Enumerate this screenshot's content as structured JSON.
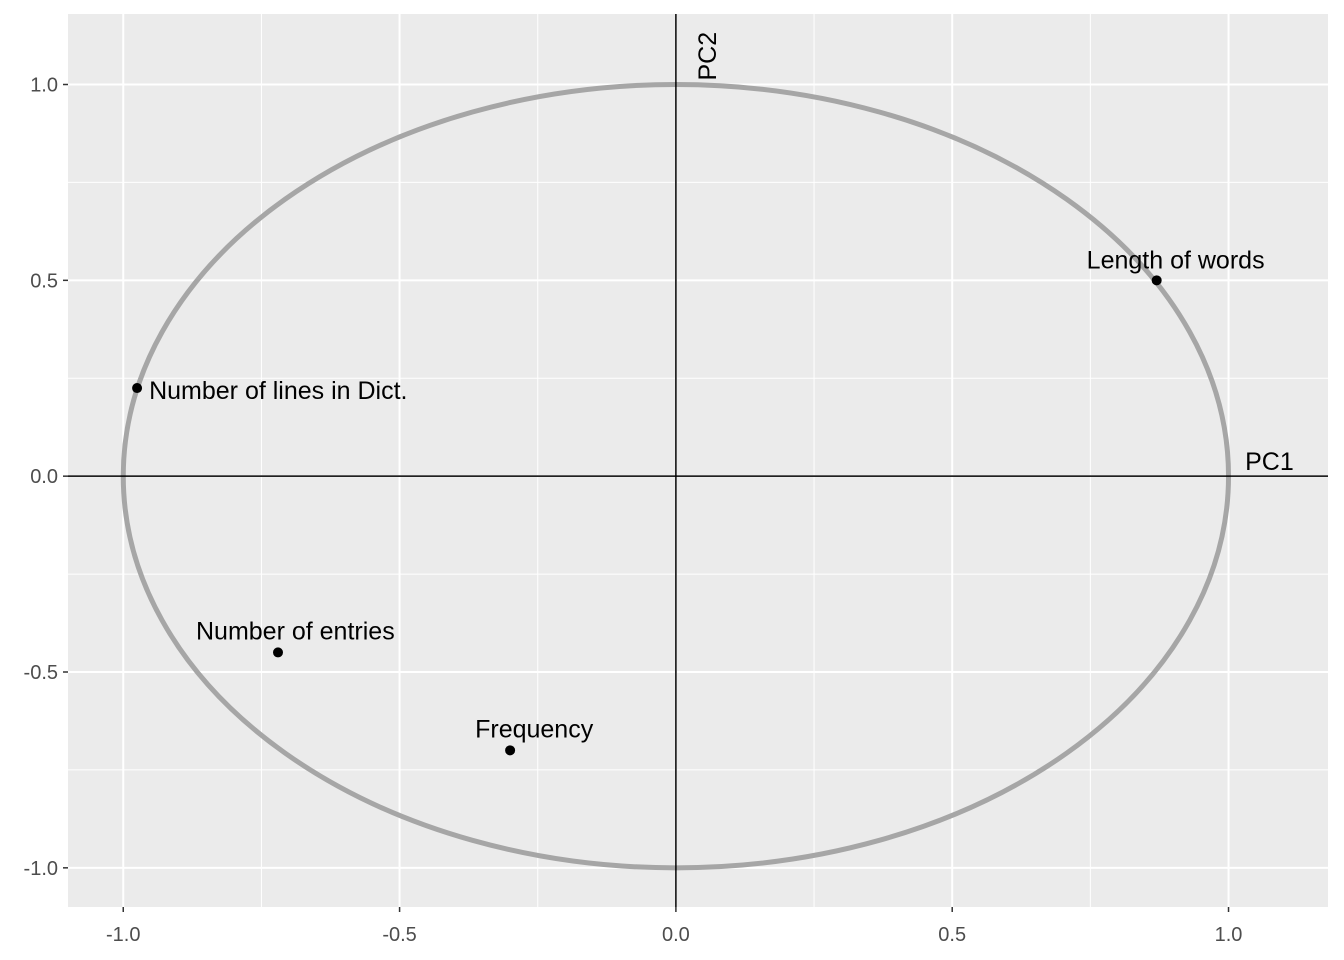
{
  "chart_data": {
    "type": "scatter",
    "title": "",
    "xlabel": "",
    "ylabel": "",
    "xlim": [
      -1.1,
      1.18
    ],
    "ylim": [
      -1.1,
      1.18
    ],
    "x_ticks": [
      -1.0,
      -0.5,
      0.0,
      0.5,
      1.0
    ],
    "y_ticks": [
      -1.0,
      -0.5,
      0.0,
      0.5,
      1.0
    ],
    "x_tick_labels": [
      "-1.0",
      "-0.5",
      "0.0",
      "0.5",
      "1.0"
    ],
    "y_tick_labels": [
      "-1.0",
      "-0.5",
      "0.0",
      "0.5",
      "1.0"
    ],
    "grid": true,
    "unit_circle": {
      "radius": 1.0,
      "color": "#a6a6a6"
    },
    "reference_axes": [
      {
        "label": "PC1",
        "orientation": "horizontal",
        "value": 0.0
      },
      {
        "label": "PC2",
        "orientation": "vertical",
        "value": 0.0
      }
    ],
    "points": [
      {
        "label": "Length of words",
        "x": 0.87,
        "y": 0.5
      },
      {
        "label": "Number of lines in Dict.",
        "x": -0.975,
        "y": 0.225
      },
      {
        "label": "Number of entries",
        "x": -0.72,
        "y": -0.45
      },
      {
        "label": "Frequency",
        "x": -0.3,
        "y": -0.7
      }
    ],
    "colors": {
      "panel": "#ebebeb",
      "grid": "#ffffff",
      "points": "#000000",
      "ticks": "#4d4d4d"
    }
  }
}
